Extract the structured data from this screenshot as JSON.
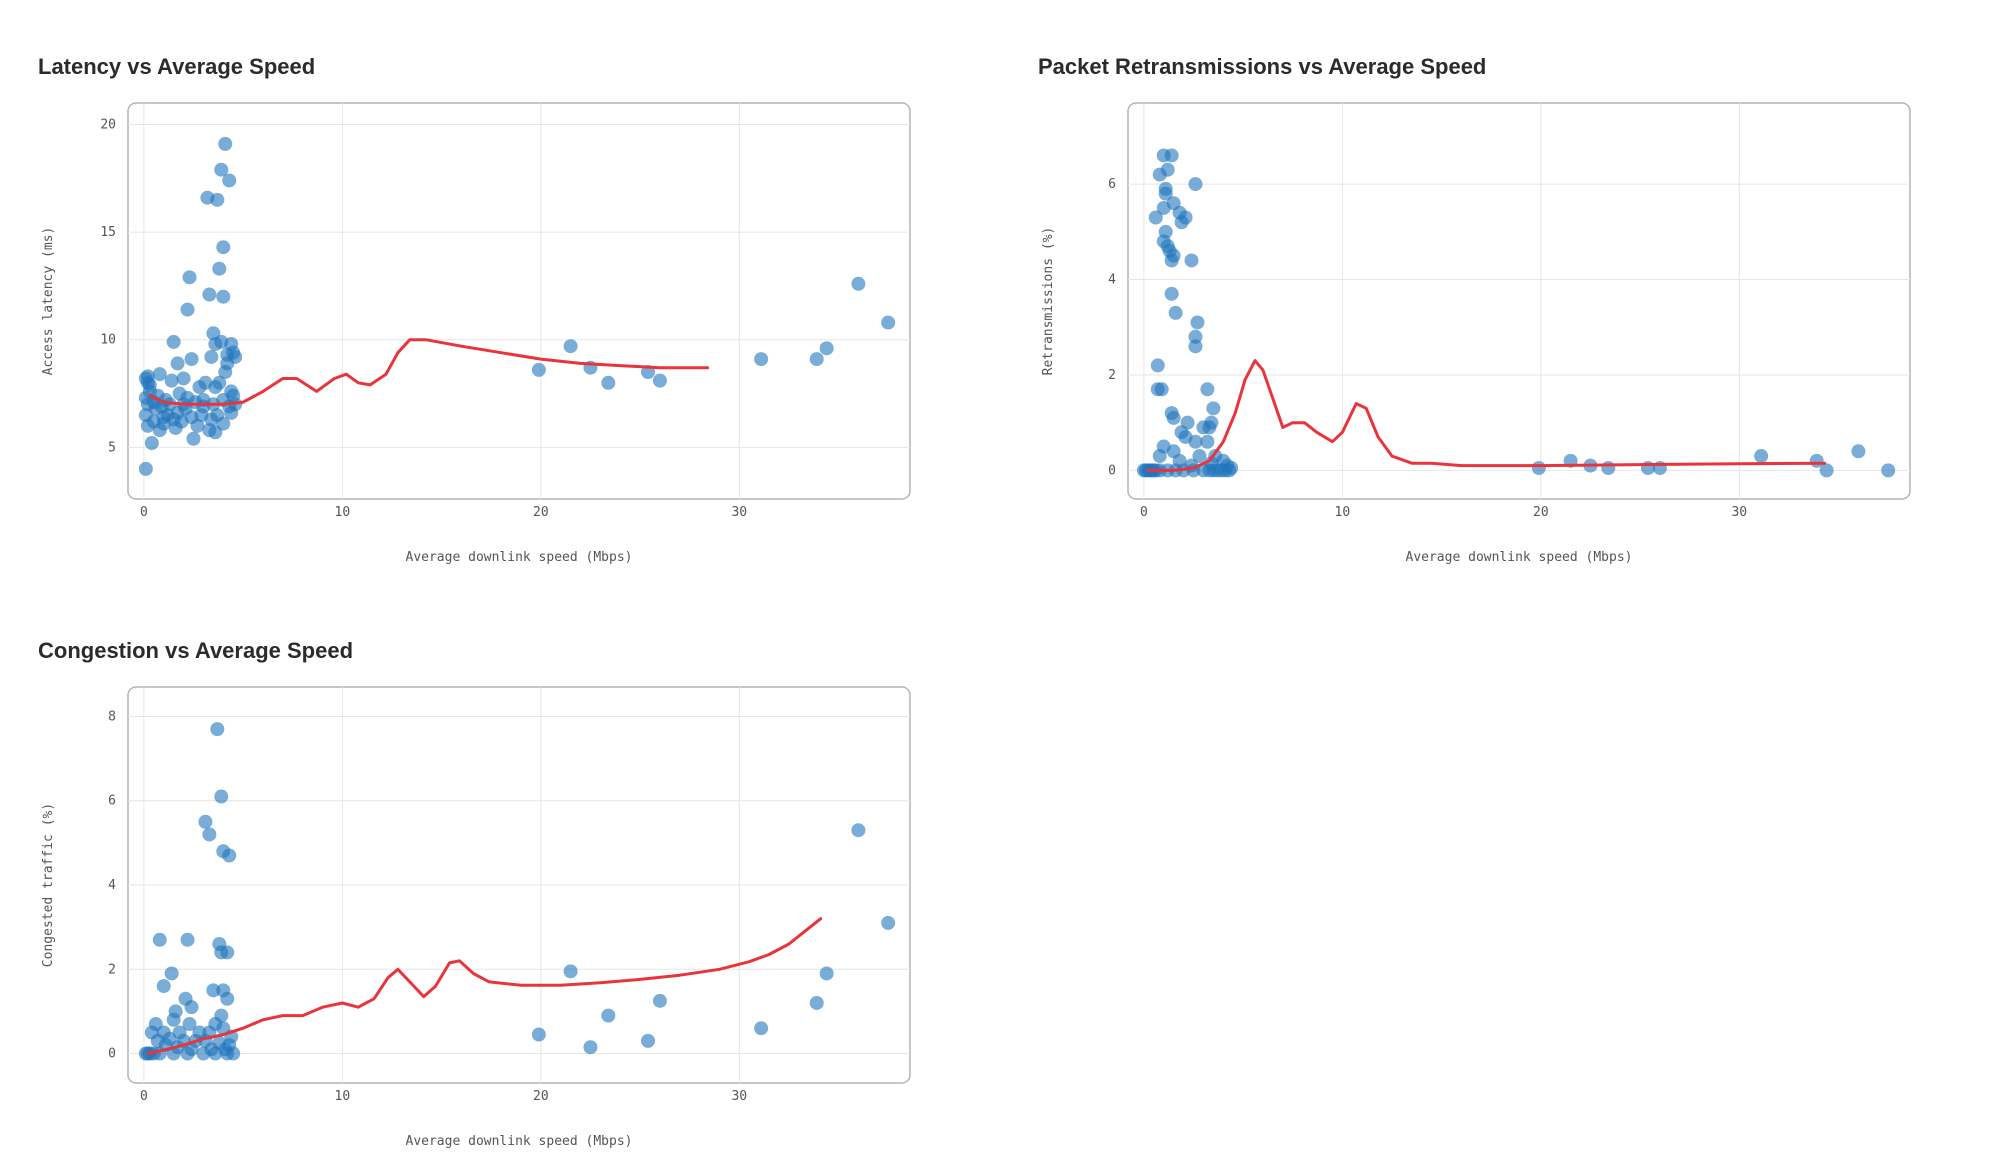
{
  "colors": {
    "points": "#1f74bd",
    "trend": "#e8343a"
  },
  "chart_data": [
    {
      "type": "scatter",
      "title": "Latency vs Average Speed",
      "xlabel": "Average downlink speed (Mbps)",
      "ylabel": "Access latency (ms)",
      "xlim": [
        -0.8,
        38.6
      ],
      "ylim": [
        2.6,
        21
      ],
      "xticks": [
        0,
        10,
        20,
        30
      ],
      "yticks": [
        5,
        10,
        15,
        20
      ],
      "points": [
        [
          0.1,
          4.0
        ],
        [
          0.2,
          6.0
        ],
        [
          0.1,
          6.5
        ],
        [
          0.2,
          7.0
        ],
        [
          0.1,
          7.3
        ],
        [
          0.3,
          7.6
        ],
        [
          0.2,
          8.0
        ],
        [
          0.1,
          8.2
        ],
        [
          0.2,
          8.3
        ],
        [
          0.3,
          7.9
        ],
        [
          0.4,
          5.2
        ],
        [
          0.5,
          6.2
        ],
        [
          0.6,
          6.8
        ],
        [
          0.7,
          7.4
        ],
        [
          0.8,
          5.8
        ],
        [
          0.9,
          6.9
        ],
        [
          1.0,
          6.1
        ],
        [
          1.1,
          7.2
        ],
        [
          0.8,
          8.4
        ],
        [
          1.2,
          6.5
        ],
        [
          1.3,
          7.0
        ],
        [
          1.4,
          8.1
        ],
        [
          1.5,
          6.3
        ],
        [
          1.5,
          9.9
        ],
        [
          1.6,
          5.9
        ],
        [
          1.7,
          6.6
        ],
        [
          1.8,
          7.5
        ],
        [
          1.7,
          8.9
        ],
        [
          1.9,
          6.2
        ],
        [
          2.0,
          8.2
        ],
        [
          2.1,
          6.8
        ],
        [
          2.2,
          7.3
        ],
        [
          2.2,
          11.4
        ],
        [
          2.3,
          12.9
        ],
        [
          2.4,
          6.4
        ],
        [
          2.5,
          5.4
        ],
        [
          2.6,
          7.1
        ],
        [
          2.4,
          9.1
        ],
        [
          2.7,
          6.0
        ],
        [
          2.8,
          7.8
        ],
        [
          2.9,
          6.5
        ],
        [
          3.0,
          7.2
        ],
        [
          3.1,
          8.0
        ],
        [
          3.2,
          16.6
        ],
        [
          3.3,
          5.8
        ],
        [
          3.3,
          12.1
        ],
        [
          3.4,
          6.3
        ],
        [
          3.4,
          9.2
        ],
        [
          3.5,
          7.0
        ],
        [
          3.5,
          10.3
        ],
        [
          3.6,
          5.7
        ],
        [
          3.6,
          7.8
        ],
        [
          3.6,
          9.8
        ],
        [
          3.7,
          16.5
        ],
        [
          3.7,
          6.5
        ],
        [
          3.8,
          13.3
        ],
        [
          3.8,
          8.0
        ],
        [
          3.9,
          17.9
        ],
        [
          3.9,
          9.9
        ],
        [
          4.0,
          14.3
        ],
        [
          4.0,
          12.0
        ],
        [
          4.0,
          7.2
        ],
        [
          4.0,
          6.1
        ],
        [
          4.1,
          8.5
        ],
        [
          4.1,
          19.1
        ],
        [
          4.2,
          8.9
        ],
        [
          4.2,
          9.3
        ],
        [
          4.3,
          17.4
        ],
        [
          4.3,
          6.9
        ],
        [
          4.4,
          9.8
        ],
        [
          4.4,
          7.6
        ],
        [
          4.4,
          6.6
        ],
        [
          4.5,
          7.4
        ],
        [
          4.5,
          9.4
        ],
        [
          4.6,
          9.2
        ],
        [
          4.6,
          7.0
        ],
        [
          2.0,
          7.0
        ],
        [
          1.0,
          6.4
        ],
        [
          0.5,
          7.1
        ],
        [
          3.0,
          6.9
        ],
        [
          19.9,
          8.6
        ],
        [
          21.5,
          9.7
        ],
        [
          22.5,
          8.7
        ],
        [
          23.4,
          8.0
        ],
        [
          25.4,
          8.5
        ],
        [
          26.0,
          8.1
        ],
        [
          31.1,
          9.1
        ],
        [
          33.9,
          9.1
        ],
        [
          34.4,
          9.6
        ],
        [
          36.0,
          12.6
        ],
        [
          37.5,
          10.8
        ]
      ],
      "trend": [
        [
          0.3,
          7.4
        ],
        [
          1.0,
          7.1
        ],
        [
          2.0,
          7.0
        ],
        [
          3.0,
          7.0
        ],
        [
          4.0,
          7.0
        ],
        [
          5.0,
          7.1
        ],
        [
          6.0,
          7.6
        ],
        [
          7.0,
          8.2
        ],
        [
          7.7,
          8.2
        ],
        [
          8.7,
          7.6
        ],
        [
          9.6,
          8.2
        ],
        [
          10.2,
          8.4
        ],
        [
          10.8,
          8.0
        ],
        [
          11.4,
          7.9
        ],
        [
          12.2,
          8.4
        ],
        [
          12.8,
          9.4
        ],
        [
          13.4,
          10.0
        ],
        [
          14.2,
          10.0
        ],
        [
          16.0,
          9.7
        ],
        [
          18.0,
          9.4
        ],
        [
          20.0,
          9.1
        ],
        [
          22.0,
          8.9
        ],
        [
          24.0,
          8.8
        ],
        [
          26.0,
          8.7
        ],
        [
          27.5,
          8.7
        ],
        [
          28.4,
          8.7
        ]
      ]
    },
    {
      "type": "scatter",
      "title": "Packet Retransmissions vs Average Speed",
      "xlabel": "Average downlink speed (Mbps)",
      "ylabel": "Retransmissions (%)",
      "xlim": [
        -0.8,
        38.6
      ],
      "ylim": [
        -0.6,
        7.7
      ],
      "xticks": [
        0,
        10,
        20,
        30
      ],
      "yticks": [
        0,
        2,
        4,
        6
      ],
      "points": [
        [
          0.6,
          5.3
        ],
        [
          0.8,
          6.2
        ],
        [
          1.0,
          6.6
        ],
        [
          1.2,
          6.3
        ],
        [
          1.4,
          6.6
        ],
        [
          1.1,
          5.9
        ],
        [
          1.1,
          5.8
        ],
        [
          1.5,
          5.6
        ],
        [
          1.0,
          5.5
        ],
        [
          1.8,
          5.4
        ],
        [
          2.1,
          5.3
        ],
        [
          1.9,
          5.2
        ],
        [
          2.6,
          6.0
        ],
        [
          1.1,
          5.0
        ],
        [
          1.0,
          4.8
        ],
        [
          1.2,
          4.7
        ],
        [
          1.3,
          4.6
        ],
        [
          1.5,
          4.5
        ],
        [
          1.4,
          4.4
        ],
        [
          2.4,
          4.4
        ],
        [
          1.4,
          3.7
        ],
        [
          1.6,
          3.3
        ],
        [
          2.7,
          3.1
        ],
        [
          2.6,
          2.8
        ],
        [
          2.6,
          2.6
        ],
        [
          0.7,
          2.2
        ],
        [
          0.7,
          1.7
        ],
        [
          0.9,
          1.7
        ],
        [
          3.2,
          1.7
        ],
        [
          3.5,
          1.3
        ],
        [
          1.4,
          1.2
        ],
        [
          1.5,
          1.1
        ],
        [
          2.2,
          1.0
        ],
        [
          3.4,
          1.0
        ],
        [
          3.0,
          0.9
        ],
        [
          3.3,
          0.9
        ],
        [
          1.9,
          0.8
        ],
        [
          2.1,
          0.7
        ],
        [
          2.6,
          0.6
        ],
        [
          3.2,
          0.6
        ],
        [
          1.0,
          0.5
        ],
        [
          1.5,
          0.4
        ],
        [
          2.8,
          0.3
        ],
        [
          3.6,
          0.3
        ],
        [
          4.0,
          0.2
        ],
        [
          0.8,
          0.3
        ],
        [
          1.8,
          0.2
        ],
        [
          2.4,
          0.1
        ],
        [
          3.4,
          0.15
        ],
        [
          4.2,
          0.1
        ],
        [
          0.0,
          0.0
        ],
        [
          0.1,
          0.0
        ],
        [
          0.2,
          0.0
        ],
        [
          0.3,
          0.0
        ],
        [
          0.4,
          0.0
        ],
        [
          0.5,
          0.0
        ],
        [
          0.6,
          0.0
        ],
        [
          0.8,
          0.0
        ],
        [
          1.2,
          0.0
        ],
        [
          1.6,
          0.0
        ],
        [
          2.0,
          0.0
        ],
        [
          2.5,
          0.0
        ],
        [
          3.0,
          0.0
        ],
        [
          3.3,
          0.0
        ],
        [
          3.5,
          0.0
        ],
        [
          3.7,
          0.0
        ],
        [
          3.9,
          0.0
        ],
        [
          4.1,
          0.0
        ],
        [
          4.3,
          0.0
        ],
        [
          4.4,
          0.05
        ],
        [
          19.9,
          0.05
        ],
        [
          21.5,
          0.2
        ],
        [
          22.5,
          0.1
        ],
        [
          23.4,
          0.05
        ],
        [
          25.4,
          0.05
        ],
        [
          26.0,
          0.05
        ],
        [
          31.1,
          0.3
        ],
        [
          33.9,
          0.2
        ],
        [
          34.4,
          0.0
        ],
        [
          36.0,
          0.4
        ],
        [
          37.5,
          0.0
        ]
      ],
      "trend": [
        [
          0.2,
          0.0
        ],
        [
          1.5,
          0.0
        ],
        [
          2.5,
          0.05
        ],
        [
          3.3,
          0.2
        ],
        [
          4.0,
          0.6
        ],
        [
          4.6,
          1.2
        ],
        [
          5.1,
          1.9
        ],
        [
          5.6,
          2.3
        ],
        [
          6.0,
          2.1
        ],
        [
          6.5,
          1.5
        ],
        [
          7.0,
          0.9
        ],
        [
          7.5,
          1.0
        ],
        [
          8.1,
          1.0
        ],
        [
          8.7,
          0.8
        ],
        [
          9.5,
          0.6
        ],
        [
          10.0,
          0.8
        ],
        [
          10.7,
          1.4
        ],
        [
          11.2,
          1.3
        ],
        [
          11.8,
          0.7
        ],
        [
          12.5,
          0.3
        ],
        [
          13.5,
          0.15
        ],
        [
          14.5,
          0.15
        ],
        [
          16.0,
          0.1
        ],
        [
          20.0,
          0.1
        ],
        [
          25.0,
          0.12
        ],
        [
          30.0,
          0.14
        ],
        [
          34.3,
          0.15
        ]
      ]
    },
    {
      "type": "scatter",
      "title": "Congestion vs Average Speed",
      "xlabel": "Average downlink speed (Mbps)",
      "ylabel": "Congested traffic (%)",
      "xlim": [
        -0.8,
        38.6
      ],
      "ylim": [
        -0.7,
        8.7
      ],
      "xticks": [
        0,
        10,
        20,
        30
      ],
      "yticks": [
        0,
        2,
        4,
        6,
        8
      ],
      "points": [
        [
          3.7,
          7.7
        ],
        [
          3.9,
          6.1
        ],
        [
          3.1,
          5.5
        ],
        [
          3.3,
          5.2
        ],
        [
          4.0,
          4.8
        ],
        [
          4.3,
          4.7
        ],
        [
          0.8,
          2.7
        ],
        [
          2.2,
          2.7
        ],
        [
          3.8,
          2.6
        ],
        [
          3.9,
          2.4
        ],
        [
          4.2,
          2.4
        ],
        [
          1.4,
          1.9
        ],
        [
          1.0,
          1.6
        ],
        [
          3.5,
          1.5
        ],
        [
          4.0,
          1.5
        ],
        [
          4.2,
          1.3
        ],
        [
          2.1,
          1.3
        ],
        [
          2.4,
          1.1
        ],
        [
          1.6,
          1.0
        ],
        [
          3.9,
          0.9
        ],
        [
          1.5,
          0.8
        ],
        [
          0.6,
          0.7
        ],
        [
          2.3,
          0.7
        ],
        [
          3.6,
          0.7
        ],
        [
          4.0,
          0.6
        ],
        [
          0.4,
          0.5
        ],
        [
          1.0,
          0.5
        ],
        [
          1.8,
          0.5
        ],
        [
          2.8,
          0.5
        ],
        [
          3.3,
          0.5
        ],
        [
          4.4,
          0.4
        ],
        [
          0.7,
          0.3
        ],
        [
          1.3,
          0.35
        ],
        [
          2.0,
          0.3
        ],
        [
          2.6,
          0.3
        ],
        [
          3.1,
          0.3
        ],
        [
          3.8,
          0.25
        ],
        [
          4.3,
          0.2
        ],
        [
          1.1,
          0.2
        ],
        [
          1.7,
          0.15
        ],
        [
          2.4,
          0.1
        ],
        [
          3.4,
          0.1
        ],
        [
          4.1,
          0.1
        ],
        [
          0.1,
          0.0
        ],
        [
          0.2,
          0.0
        ],
        [
          0.3,
          0.0
        ],
        [
          0.5,
          0.0
        ],
        [
          0.8,
          0.0
        ],
        [
          1.5,
          0.0
        ],
        [
          2.2,
          0.0
        ],
        [
          3.0,
          0.0
        ],
        [
          3.6,
          0.0
        ],
        [
          4.2,
          0.0
        ],
        [
          4.5,
          0.0
        ],
        [
          19.9,
          0.45
        ],
        [
          21.5,
          1.95
        ],
        [
          22.5,
          0.15
        ],
        [
          23.4,
          0.9
        ],
        [
          25.4,
          0.3
        ],
        [
          26.0,
          1.25
        ],
        [
          31.1,
          0.6
        ],
        [
          33.9,
          1.2
        ],
        [
          34.4,
          1.9
        ],
        [
          36.0,
          5.3
        ],
        [
          37.5,
          3.1
        ]
      ],
      "trend": [
        [
          0.2,
          0.0
        ],
        [
          1.0,
          0.08
        ],
        [
          2.0,
          0.2
        ],
        [
          3.0,
          0.35
        ],
        [
          4.0,
          0.45
        ],
        [
          5.0,
          0.6
        ],
        [
          6.0,
          0.8
        ],
        [
          7.0,
          0.9
        ],
        [
          8.0,
          0.9
        ],
        [
          9.0,
          1.1
        ],
        [
          10.0,
          1.2
        ],
        [
          10.8,
          1.1
        ],
        [
          11.6,
          1.3
        ],
        [
          12.3,
          1.8
        ],
        [
          12.8,
          2.0
        ],
        [
          13.4,
          1.7
        ],
        [
          14.1,
          1.35
        ],
        [
          14.7,
          1.6
        ],
        [
          15.4,
          2.15
        ],
        [
          15.9,
          2.2
        ],
        [
          16.6,
          1.9
        ],
        [
          17.4,
          1.7
        ],
        [
          19.0,
          1.62
        ],
        [
          21.0,
          1.62
        ],
        [
          23.0,
          1.68
        ],
        [
          25.0,
          1.76
        ],
        [
          27.0,
          1.86
        ],
        [
          29.0,
          2.0
        ],
        [
          30.5,
          2.18
        ],
        [
          31.5,
          2.35
        ],
        [
          32.5,
          2.6
        ],
        [
          33.3,
          2.9
        ],
        [
          34.1,
          3.2
        ]
      ]
    }
  ]
}
